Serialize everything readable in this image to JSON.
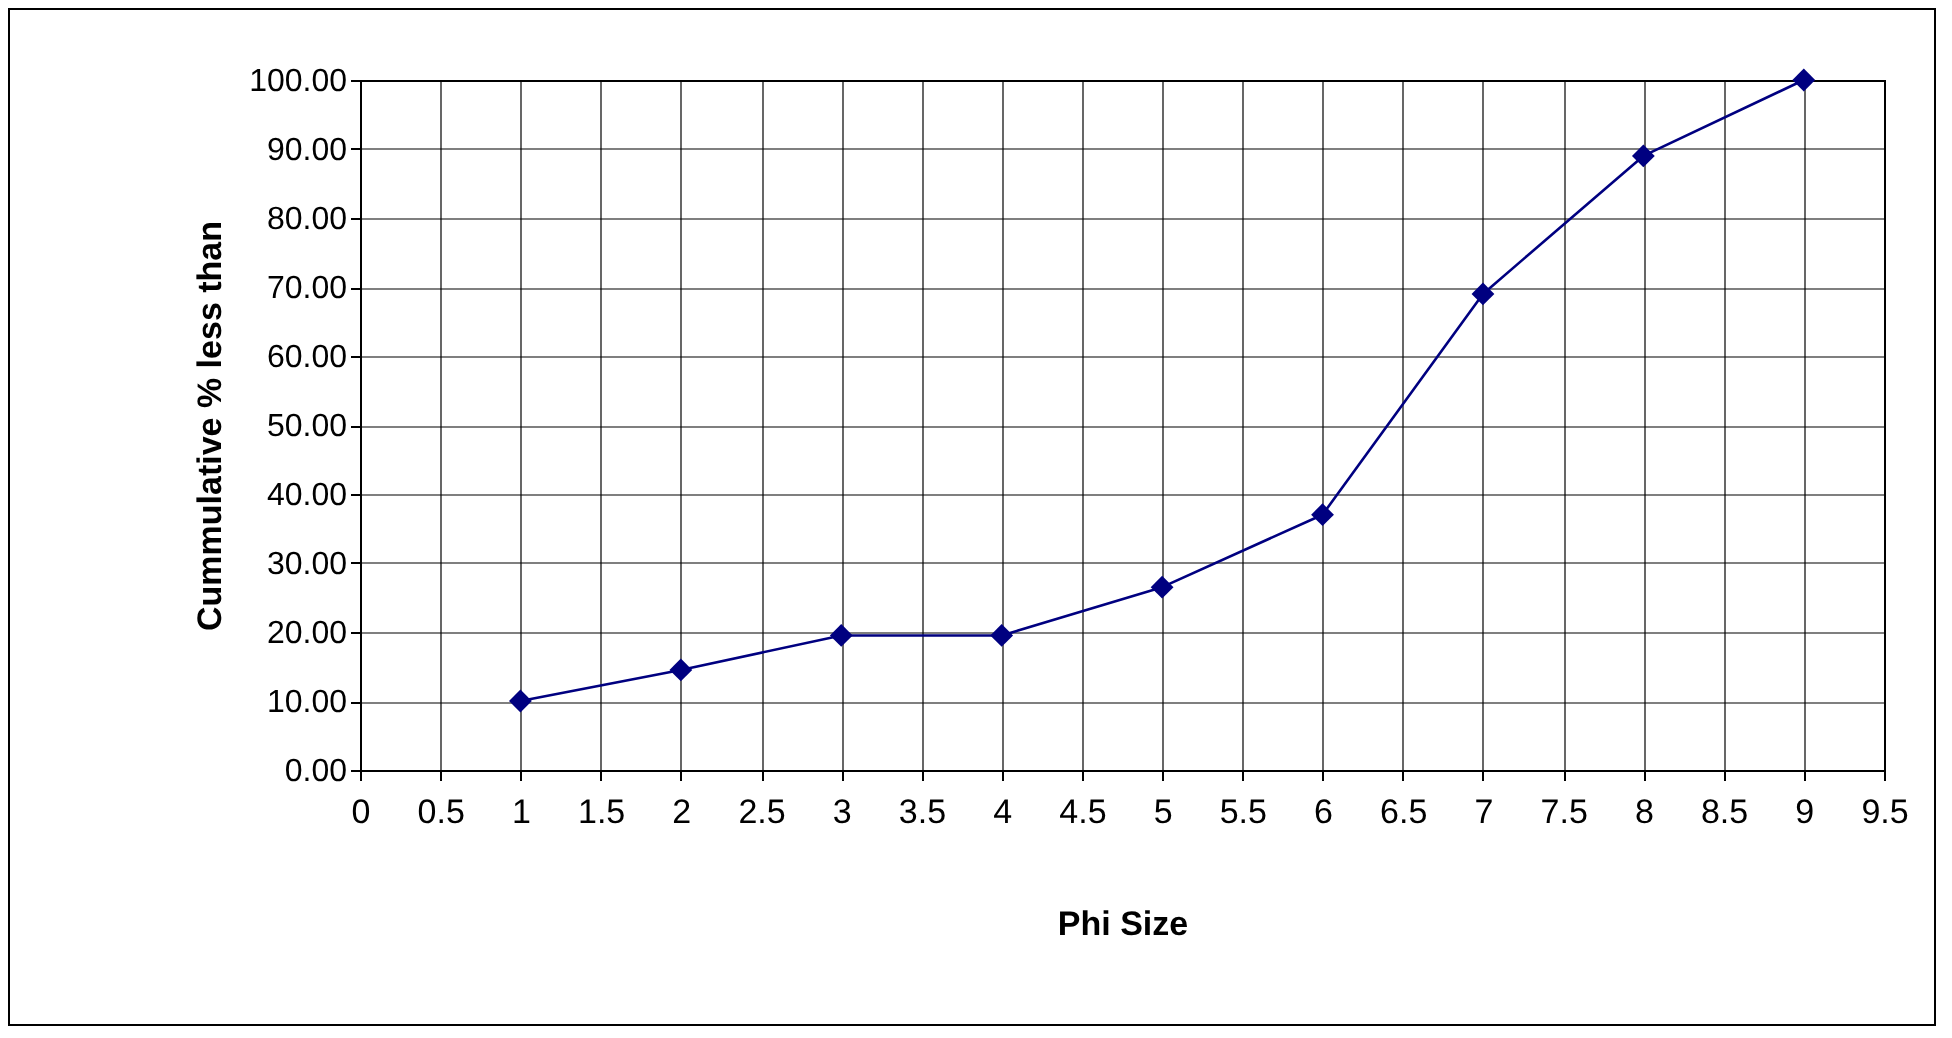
{
  "chart_data": {
    "type": "line",
    "xlabel": "Phi Size",
    "ylabel": "Cummulative % less than",
    "x": [
      1,
      2,
      3,
      4,
      5,
      6,
      7,
      8,
      9
    ],
    "series": [
      {
        "color": "#000080",
        "values": [
          10,
          14.5,
          19.5,
          19.5,
          26.5,
          37,
          69,
          89,
          100
        ]
      }
    ],
    "xlim": [
      0,
      9.5
    ],
    "xticks": [
      0,
      0.5,
      1,
      1.5,
      2,
      2.5,
      3,
      3.5,
      4,
      4.5,
      5,
      5.5,
      6,
      6.5,
      7,
      7.5,
      8,
      8.5,
      9,
      9.5
    ],
    "ylim": [
      0,
      100
    ],
    "yticks": [
      {
        "value": 0,
        "label": "0.00"
      },
      {
        "value": 10,
        "label": "10.00"
      },
      {
        "value": 20,
        "label": "20.00"
      },
      {
        "value": 30,
        "label": "30.00"
      },
      {
        "value": 40,
        "label": "40.00"
      },
      {
        "value": 50,
        "label": "50.00"
      },
      {
        "value": 60,
        "label": "60.00"
      },
      {
        "value": 70,
        "label": "70.00"
      },
      {
        "value": 80,
        "label": "80.00"
      },
      {
        "value": 90,
        "label": "90.00"
      },
      {
        "value": 100,
        "label": "100.00"
      }
    ],
    "grid": true,
    "marker": "diamond",
    "line_style": "solid",
    "legend": false
  }
}
